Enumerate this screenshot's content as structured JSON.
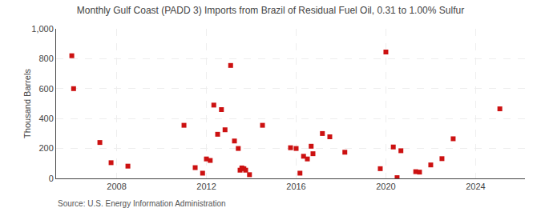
{
  "chart_data": {
    "type": "scatter",
    "title": "Monthly Gulf Coast (PADD 3) Imports from Brazil of Residual Fuel Oil, 0.31 to 1.00% Sulfur",
    "ylabel": "Thousand Barrels",
    "annotations": [
      "Source: U.S. Energy Information Administration"
    ],
    "color": "#cc1111",
    "marker": "square",
    "grid": true,
    "xlim": [
      2005.3,
      2026.2
    ],
    "xticks": [
      2008,
      2012,
      2016,
      2020,
      2024
    ],
    "ylim": [
      0,
      1000
    ],
    "yticks": [
      0,
      200,
      400,
      600,
      800,
      {
        "value": 1000,
        "label": "1,000"
      }
    ],
    "x": [
      2006.0,
      2006.08,
      2007.25,
      2007.75,
      2008.5,
      2011.0,
      2011.5,
      2011.83,
      2012.0,
      2012.17,
      2012.33,
      2012.5,
      2012.67,
      2012.83,
      2013.08,
      2013.25,
      2013.42,
      2013.5,
      2013.58,
      2013.67,
      2013.75,
      2013.92,
      2014.5,
      2015.75,
      2016.0,
      2016.17,
      2016.33,
      2016.5,
      2016.67,
      2016.75,
      2017.17,
      2017.5,
      2018.17,
      2019.75,
      2020.0,
      2020.33,
      2020.5,
      2020.67,
      2021.33,
      2021.5,
      2022.0,
      2022.5,
      2023.0,
      2025.08
    ],
    "values": [
      820,
      600,
      240,
      105,
      82,
      355,
      72,
      35,
      130,
      120,
      490,
      295,
      460,
      325,
      755,
      250,
      200,
      55,
      70,
      65,
      55,
      25,
      355,
      205,
      200,
      35,
      148,
      130,
      215,
      165,
      300,
      278,
      175,
      65,
      845,
      210,
      5,
      185,
      45,
      42,
      90,
      132,
      265,
      465
    ]
  }
}
